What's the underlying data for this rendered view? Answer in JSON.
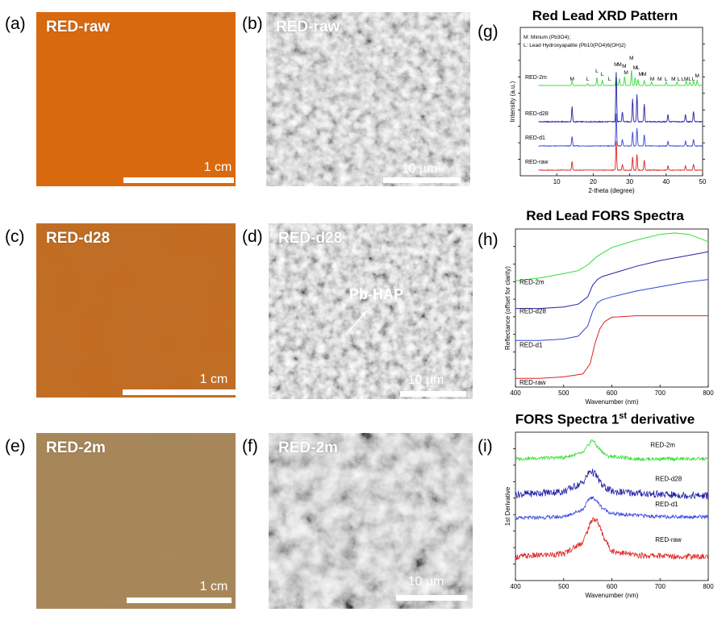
{
  "panels": {
    "a": {
      "letter": "(a)",
      "label": "RED-raw",
      "scale": "1 cm",
      "color": "#d9690f"
    },
    "b": {
      "letter": "(b)",
      "label": "RED-raw",
      "scale": "10 µm"
    },
    "c": {
      "letter": "(c)",
      "label": "RED-d28",
      "scale": "1 cm",
      "color": "#c46a1e"
    },
    "d": {
      "letter": "(d)",
      "label": "RED-d28",
      "scale": "10 µm",
      "annotation": "Pb-HAP"
    },
    "e": {
      "letter": "(e)",
      "label": "RED-2m",
      "scale": "1 cm",
      "color": "#a8875a"
    },
    "f": {
      "letter": "(f)",
      "label": "RED-2m",
      "scale": "10 µm"
    },
    "g": {
      "letter": "(g)"
    },
    "h": {
      "letter": "(h)"
    },
    "i": {
      "letter": "(i)"
    }
  },
  "series_colors": {
    "RED-2m": "#33dd33",
    "RED-d28": "#2222aa",
    "RED-d1": "#3344dd",
    "RED-raw": "#dd2222"
  },
  "chart_data": [
    {
      "type": "line",
      "title": "Red Lead XRD Pattern",
      "xlabel": "2-theta (degree)",
      "ylabel": "Intensity (a.u.)",
      "xlim": [
        0,
        50
      ],
      "xticks": [
        "10",
        "20",
        "30",
        "40",
        "50"
      ],
      "legend_text": [
        "M: Minium (Pb3O4);",
        "L: Lead Hydroxyapatite (Pb10(PO4)6(OH)2)"
      ],
      "peak_labels": [
        "M",
        "L",
        "L",
        "L",
        "L",
        "M",
        "M",
        "M",
        "M",
        "M",
        "L",
        "M",
        "M",
        "M",
        "L",
        "M",
        "L",
        "L",
        "M",
        "L",
        "L",
        "M",
        "M",
        "M"
      ],
      "series": [
        {
          "name": "RED-2m",
          "color": "#33dd33",
          "peaks": [
            [
              14.2,
              0.25
            ],
            [
              18.5,
              0.1
            ],
            [
              21.0,
              0.45
            ],
            [
              22.5,
              0.3
            ],
            [
              26.3,
              0.55
            ],
            [
              27.2,
              0.4
            ],
            [
              28.6,
              0.5
            ],
            [
              30.5,
              0.85
            ],
            [
              31.5,
              0.45
            ],
            [
              32.3,
              0.35
            ],
            [
              34.0,
              0.3
            ],
            [
              36.0,
              0.2
            ],
            [
              40.0,
              0.2
            ],
            [
              43.0,
              0.2
            ],
            [
              45.5,
              0.25
            ],
            [
              46.5,
              0.2
            ],
            [
              47.5,
              0.25
            ],
            [
              48.5,
              0.3
            ]
          ]
        },
        {
          "name": "RED-d28",
          "color": "#2222aa",
          "peaks": [
            [
              14.2,
              0.3
            ],
            [
              26.3,
              1.0
            ],
            [
              28.0,
              0.2
            ],
            [
              30.8,
              0.45
            ],
            [
              32.0,
              0.55
            ],
            [
              34.0,
              0.35
            ],
            [
              40.5,
              0.15
            ],
            [
              45.3,
              0.15
            ],
            [
              47.5,
              0.2
            ]
          ]
        },
        {
          "name": "RED-d1",
          "color": "#3344dd",
          "peaks": [
            [
              14.2,
              0.3
            ],
            [
              26.3,
              1.0
            ],
            [
              28.0,
              0.2
            ],
            [
              30.8,
              0.45
            ],
            [
              32.0,
              0.55
            ],
            [
              34.0,
              0.35
            ],
            [
              40.5,
              0.15
            ],
            [
              45.3,
              0.15
            ],
            [
              47.5,
              0.2
            ]
          ]
        },
        {
          "name": "RED-raw",
          "color": "#dd2222",
          "peaks": [
            [
              14.2,
              0.3
            ],
            [
              26.3,
              1.0
            ],
            [
              28.0,
              0.2
            ],
            [
              30.8,
              0.45
            ],
            [
              32.0,
              0.55
            ],
            [
              34.0,
              0.35
            ],
            [
              40.5,
              0.15
            ],
            [
              45.3,
              0.15
            ],
            [
              47.5,
              0.2
            ]
          ]
        }
      ]
    },
    {
      "type": "line",
      "title": "Red Lead FORS Spectra",
      "xlabel": "Wavenumber (nm)",
      "ylabel": "Reflectance (offset for clarity)",
      "xlim": [
        400,
        800
      ],
      "xticks": [
        "400",
        "500",
        "600",
        "700",
        "800"
      ],
      "series": [
        {
          "name": "RED-2m",
          "color": "#33dd33",
          "x": [
            400,
            450,
            500,
            530,
            550,
            570,
            600,
            650,
            700,
            730,
            760,
            800
          ],
          "y": [
            0.73,
            0.75,
            0.78,
            0.8,
            0.84,
            0.9,
            0.96,
            1.01,
            1.05,
            1.06,
            1.05,
            1.0
          ]
        },
        {
          "name": "RED-d28",
          "color": "#2222aa",
          "x": [
            400,
            450,
            500,
            530,
            550,
            560,
            570,
            580,
            600,
            650,
            700,
            750,
            800
          ],
          "y": [
            0.54,
            0.54,
            0.55,
            0.57,
            0.62,
            0.7,
            0.74,
            0.76,
            0.78,
            0.83,
            0.87,
            0.9,
            0.93
          ]
        },
        {
          "name": "RED-d1",
          "color": "#3344dd",
          "x": [
            400,
            450,
            500,
            530,
            550,
            560,
            570,
            580,
            600,
            650,
            700,
            750,
            800
          ],
          "y": [
            0.32,
            0.32,
            0.33,
            0.35,
            0.42,
            0.52,
            0.58,
            0.6,
            0.62,
            0.66,
            0.69,
            0.72,
            0.74
          ]
        },
        {
          "name": "RED-raw",
          "color": "#dd2222",
          "x": [
            400,
            450,
            500,
            540,
            555,
            565,
            575,
            585,
            600,
            650,
            700,
            750,
            800
          ],
          "y": [
            0.06,
            0.06,
            0.07,
            0.09,
            0.16,
            0.3,
            0.4,
            0.45,
            0.48,
            0.49,
            0.49,
            0.49,
            0.49
          ]
        }
      ]
    },
    {
      "type": "line",
      "title": "FORS Spectra 1st derivative",
      "xlabel": "Wavenumber (nm)",
      "ylabel": "1st Derivative",
      "xlim": [
        400,
        800
      ],
      "xticks": [
        "400",
        "500",
        "600",
        "700",
        "800"
      ],
      "series": [
        {
          "name": "RED-2m",
          "color": "#33dd33",
          "x": [
            400,
            500,
            540,
            555,
            560,
            570,
            590,
            650,
            800
          ],
          "y": [
            0.82,
            0.83,
            0.86,
            0.93,
            0.95,
            0.9,
            0.84,
            0.82,
            0.82
          ]
        },
        {
          "name": "RED-d28",
          "color": "#2222aa",
          "x": [
            400,
            500,
            540,
            555,
            565,
            580,
            600,
            700,
            800
          ],
          "y": [
            0.58,
            0.6,
            0.66,
            0.74,
            0.72,
            0.64,
            0.6,
            0.58,
            0.57
          ]
        },
        {
          "name": "RED-d1",
          "color": "#3344dd",
          "x": [
            400,
            500,
            540,
            555,
            565,
            580,
            600,
            700,
            800
          ],
          "y": [
            0.42,
            0.43,
            0.48,
            0.56,
            0.55,
            0.49,
            0.45,
            0.43,
            0.43
          ]
        },
        {
          "name": "RED-raw",
          "color": "#dd2222",
          "x": [
            400,
            500,
            540,
            560,
            570,
            585,
            600,
            650,
            800
          ],
          "y": [
            0.16,
            0.18,
            0.26,
            0.42,
            0.4,
            0.28,
            0.2,
            0.17,
            0.16
          ]
        }
      ]
    }
  ]
}
